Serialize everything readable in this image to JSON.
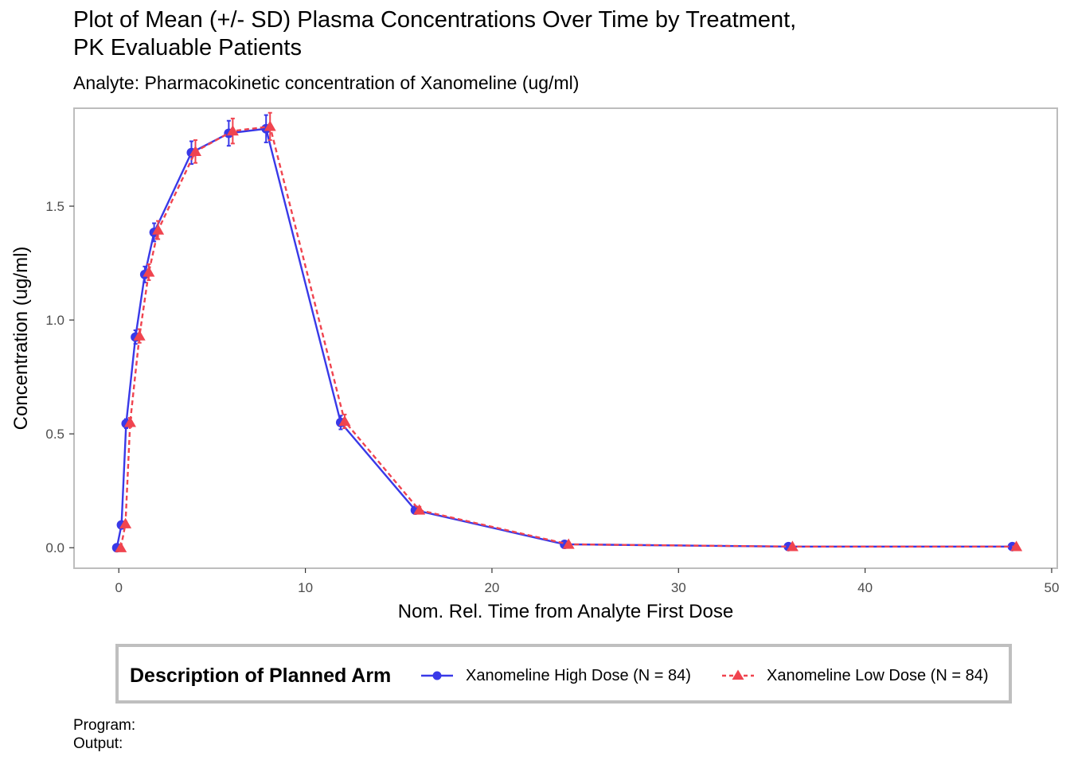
{
  "chart_data": {
    "type": "line",
    "title_lines": [
      "Plot of Mean (+/- SD) Plasma Concentrations Over Time by Treatment,",
      "PK Evaluable Patients"
    ],
    "subtitle": "Analyte: Pharmacokinetic concentration of Xanomeline (ug/ml)",
    "xlabel": "Nom. Rel. Time from Analyte First Dose",
    "ylabel": "Concentration (ug/ml)",
    "xlim": [
      -2.4,
      50.3
    ],
    "ylim": [
      -0.09,
      1.93
    ],
    "xticks": [
      0,
      10,
      20,
      30,
      40,
      50
    ],
    "xtick_labels": [
      "0",
      "10",
      "20",
      "30",
      "40",
      "50"
    ],
    "yticks": [
      0,
      0.5,
      1,
      1.5
    ],
    "ytick_labels": [
      "0.0",
      "0.5",
      "1.0",
      "1.5"
    ],
    "grid": false,
    "legend": {
      "title": "Description of Planned Arm",
      "position": "bottom"
    },
    "series": [
      {
        "name": "Xanomeline High Dose (N = 84)",
        "color": "#3939e8",
        "linestyle": "solid",
        "marker": "circle",
        "x": [
          0,
          0.25,
          0.5,
          1,
          1.5,
          2,
          4,
          6,
          8,
          12,
          16,
          24,
          36,
          48
        ],
        "y": [
          0.0,
          0.1,
          0.545,
          0.925,
          1.2,
          1.385,
          1.735,
          1.82,
          1.84,
          0.55,
          0.165,
          0.015,
          0.005,
          0.005
        ],
        "sd": [
          0.0,
          0.01,
          0.02,
          0.03,
          0.035,
          0.04,
          0.05,
          0.055,
          0.06,
          0.03,
          0.015,
          0.005,
          0.002,
          0.002
        ]
      },
      {
        "name": "Xanomeline Low Dose (N = 84)",
        "color": "#f0444f",
        "linestyle": "dashed",
        "marker": "triangle",
        "x": [
          0,
          0.25,
          0.5,
          1,
          1.5,
          2,
          4,
          6,
          8,
          12,
          16,
          24,
          36,
          48
        ],
        "y": [
          0.0,
          0.105,
          0.55,
          0.93,
          1.21,
          1.395,
          1.74,
          1.83,
          1.85,
          0.555,
          0.165,
          0.015,
          0.005,
          0.005
        ],
        "sd": [
          0.0,
          0.01,
          0.02,
          0.03,
          0.035,
          0.04,
          0.05,
          0.055,
          0.06,
          0.03,
          0.015,
          0.005,
          0.002,
          0.002
        ]
      }
    ]
  },
  "footer": {
    "program_label": "Program:",
    "output_label": "Output:"
  }
}
